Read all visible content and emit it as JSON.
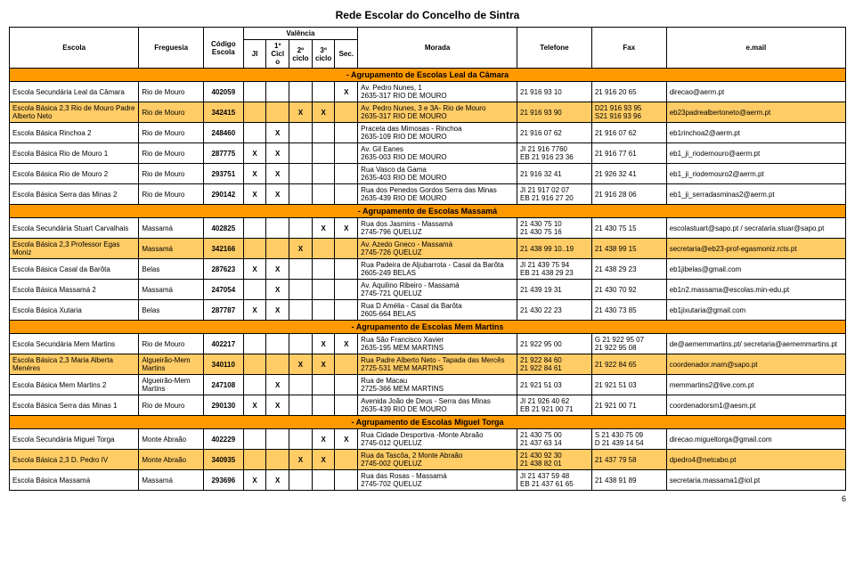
{
  "title": "Rede Escolar do Concelho de Sintra",
  "pageNum": "6",
  "headers": {
    "escola": "Escola",
    "freguesia": "Freguesia",
    "codigo": "Código Escola",
    "valencia": "Valência",
    "ji": "JI",
    "c1": "1º Ciclo",
    "c2": "2º ciclo",
    "c3": "3º ciclo",
    "sec": "Sec.",
    "morada": "Morada",
    "telefone": "Telefone",
    "fax": "Fax",
    "email": "e.mail"
  },
  "groups": [
    {
      "label": "- Agrupamento de Escolas Leal da Câmara",
      "rows": [
        {
          "alt": false,
          "escola": "Escola Secundária Leal da Câmara",
          "freg": "Rio de Mouro",
          "cod": "402059",
          "ji": "",
          "c1": "",
          "c2": "",
          "c3": "",
          "sec": "X",
          "mor": "Av. Pedro Nunes, 1\n2635-317 RIO DE MOURO",
          "tel": "21 916 93 10",
          "fax": "21 916 20 65",
          "mail": "direcao@aerm.pt"
        },
        {
          "alt": true,
          "escola": "Escola Básica 2,3 Rio de Mouro Padre Alberto Neto",
          "freg": "Rio de Mouro",
          "cod": "342415",
          "ji": "",
          "c1": "",
          "c2": "X",
          "c3": "X",
          "sec": "",
          "mor": "Av. Pedro Nunes, 3 e 3A- Rio de Mouro\n2635-317 RIO DE MOURO",
          "tel": "21 916 93 90",
          "fax": "D21 916 93 95\nS21 916 93 96",
          "mail": "eb23padrealbertoneto@aerm.pt"
        },
        {
          "alt": false,
          "escola": "Escola Básica Rinchoa 2",
          "freg": "Rio de Mouro",
          "cod": "248460",
          "ji": "",
          "c1": "X",
          "c2": "",
          "c3": "",
          "sec": "",
          "mor": "Praceta das Mimosas - Rinchoa\n2635-109 RIO DE MOURO",
          "tel": "21 916 07 62",
          "fax": "21 916 07 62",
          "mail": "eb1rinchoa2@aerm.pt"
        },
        {
          "alt": false,
          "escola": "Escola Básica Rio de Mouro 1",
          "freg": "Rio de Mouro",
          "cod": "287775",
          "ji": "X",
          "c1": "X",
          "c2": "",
          "c3": "",
          "sec": "",
          "mor": "Av. Gil Eanes\n2635-003 RIO DE MOURO",
          "tel": "JI 21 916 7760\nEB 21 916 23 36",
          "fax": "21 916 77 61",
          "mail": "eb1_ji_riodemouro@aerm.pt"
        },
        {
          "alt": false,
          "escola": "Escola Básica Rio de Mouro 2",
          "freg": "Rio de Mouro",
          "cod": "293751",
          "ji": "X",
          "c1": "X",
          "c2": "",
          "c3": "",
          "sec": "",
          "mor": "Rua Vasco da Gama\n2635-403 RIO DE MOURO",
          "tel": "21 916 32 41",
          "fax": "21 926 32 41",
          "mail": "eb1_ji_riodemouro2@aerm.pt"
        },
        {
          "alt": false,
          "escola": "Escola Básica Serra das Minas 2",
          "freg": "Rio de Mouro",
          "cod": "290142",
          "ji": "X",
          "c1": "X",
          "c2": "",
          "c3": "",
          "sec": "",
          "mor": "Rua dos Penedos Gordos Serra das Minas  2635-439 RIO DE MOURO",
          "tel": "JI 21 917 02 07\nEB 21 916 27 20",
          "fax": "21 916 28 06",
          "mail": "eb1_ji_serradasminas2@aerm.pt"
        }
      ]
    },
    {
      "label": "- Agrupamento de Escolas Massamá",
      "rows": [
        {
          "alt": false,
          "escola": "Escola Secundária Stuart Carvalhais",
          "freg": "Massamá",
          "cod": "402825",
          "ji": "",
          "c1": "",
          "c2": "",
          "c3": "X",
          "sec": "X",
          "mor": "Rua dos Jasmins - Massamá\n2745-796 QUELUZ",
          "tel": "21 430 75 10\n21 430 75 16",
          "fax": "21 430 75 15",
          "mail": "escolastuart@sapo.pt / secrataria.stuar@sapo.pt"
        },
        {
          "alt": true,
          "escola": "Escola Básica 2,3 Professor Egas Moniz",
          "freg": "Massamá",
          "cod": "342166",
          "ji": "",
          "c1": "",
          "c2": "X",
          "c3": "",
          "sec": "",
          "mor": "Av. Azedo Gneco - Massamá\n2745-726 QUELUZ",
          "tel": "21 438 99 10..19",
          "fax": "21 438 99 15",
          "mail": "secretaria@eb23-prof-egasmoniz.rcts.pt"
        },
        {
          "alt": false,
          "escola": "Escola Básica Casal da Barôta",
          "freg": "Belas",
          "cod": "287623",
          "ji": "X",
          "c1": "X",
          "c2": "",
          "c3": "",
          "sec": "",
          "mor": "Rua Padeira de Aljubarrota - Casal da Barôta  2605-249 BELAS",
          "tel": "JI 21 439 75 94\nEB 21 438 29 23",
          "fax": "21 438 29 23",
          "mail": "eb1jibelas@gmail.com"
        },
        {
          "alt": false,
          "escola": "Escola Básica Massamá 2",
          "freg": "Massamá",
          "cod": "247054",
          "ji": "",
          "c1": "X",
          "c2": "",
          "c3": "",
          "sec": "",
          "mor": "Av. Aquilino Ribeiro - Massamá\n2745-721 QUELUZ",
          "tel": "21 439 19 31",
          "fax": "21 430 70 92",
          "mail": "eb1n2.massama@escolas.min-edu.pt"
        },
        {
          "alt": false,
          "escola": "Escola Básica Xutaria",
          "freg": "Belas",
          "cod": "287787",
          "ji": "X",
          "c1": "X",
          "c2": "",
          "c3": "",
          "sec": "",
          "mor": "Rua D Amélia - Casal da Barôta\n2605-664 BELAS",
          "tel": "21 430 22 23",
          "fax": "21 430 73 85",
          "mail": "eb1jixutaria@gmail.com"
        }
      ]
    },
    {
      "label": "- Agrupamento de Escolas Mem Martins",
      "rows": [
        {
          "alt": false,
          "escola": "Escola Secundária Mem Martins",
          "freg": "Rio de Mouro",
          "cod": "402217",
          "ji": "",
          "c1": "",
          "c2": "",
          "c3": "X",
          "sec": "X",
          "mor": "Rua São Francisco Xavier\n2635-195 MEM MARTINS",
          "tel": "21 922 95 00",
          "fax": "G 21 922 95 07\n21 922 95 08",
          "mail": "de@aememmartins.pt/ secretaria@aememmartins.pt"
        },
        {
          "alt": true,
          "escola": "Escola Básica 2,3 Maria Alberta Menéres",
          "freg": "Algueirão-Mem Martins",
          "cod": "340110",
          "ji": "",
          "c1": "",
          "c2": "X",
          "c3": "X",
          "sec": "",
          "mor": "Rua Padre Alberto Neto - Tapada das Mercês  2725-531 MEM MARTINS",
          "tel": "21 922 84 60\n21 922 84 61",
          "fax": "21 922 84 65",
          "mail": "coordenador.mam@sapo.pt"
        },
        {
          "alt": false,
          "escola": "Escola Básica Mem Martins 2",
          "freg": "Algueirão-Mem Martins",
          "cod": "247108",
          "ji": "",
          "c1": "X",
          "c2": "",
          "c3": "",
          "sec": "",
          "mor": "Rua de Macau\n2725-366 MEM MARTINS",
          "tel": "21 921 51 03",
          "fax": "21 921 51 03",
          "mail": "memmartins2@live.com.pt"
        },
        {
          "alt": false,
          "escola": "Escola Básica Serra das Minas 1",
          "freg": "Rio de Mouro",
          "cod": "290130",
          "ji": "X",
          "c1": "X",
          "c2": "",
          "c3": "",
          "sec": "",
          "mor": "Avenida João de Deus - Serra das Minas\n2635-439 RIO DE MOURO",
          "tel": "JI 21 926 40 62\nEB 21 921 00 71",
          "fax": "21 921 00 71",
          "mail": "coordenadorsm1@aesm.pt"
        }
      ]
    },
    {
      "label": "- Agrupamento de Escolas Miguel Torga",
      "rows": [
        {
          "alt": false,
          "escola": "Escola Secundária Miguel Torga",
          "freg": "Monte Abraão",
          "cod": "402229",
          "ji": "",
          "c1": "",
          "c2": "",
          "c3": "X",
          "sec": "X",
          "mor": "Rua Cidade Desportiva -Monte Abraão\n2745-012 QUELUZ",
          "tel": "21 430 75 00\n21 437 63 14",
          "fax": "S 21 430 75 09\nD 21 439 14 54",
          "mail": "direcao.migueltorga@gmail.com"
        },
        {
          "alt": true,
          "escola": "Escola Básica 2,3 D. Pedro IV",
          "freg": "Monte Abraão",
          "cod": "340935",
          "ji": "",
          "c1": "",
          "c2": "X",
          "c3": "X",
          "sec": "",
          "mor": "Rua da Tascôa, 2 Monte Abraão\n2745-002 QUELUZ",
          "tel": "21 430 92 30\n21 438 82 01",
          "fax": "21 437 79 58",
          "mail": "dpedro4@netcabo.pt"
        },
        {
          "alt": false,
          "escola": "Escola Básica Massamá",
          "freg": "Massamá",
          "cod": "293696",
          "ji": "X",
          "c1": "X",
          "c2": "",
          "c3": "",
          "sec": "",
          "mor": "Rua das Rosas - Massamá\n2745-702 QUELUZ",
          "tel": "JI 21 437 59 48\nEB 21 437 61 65",
          "fax": "21 438 91 89",
          "mail": "secretaria.massama1@iol.pt"
        }
      ]
    }
  ]
}
